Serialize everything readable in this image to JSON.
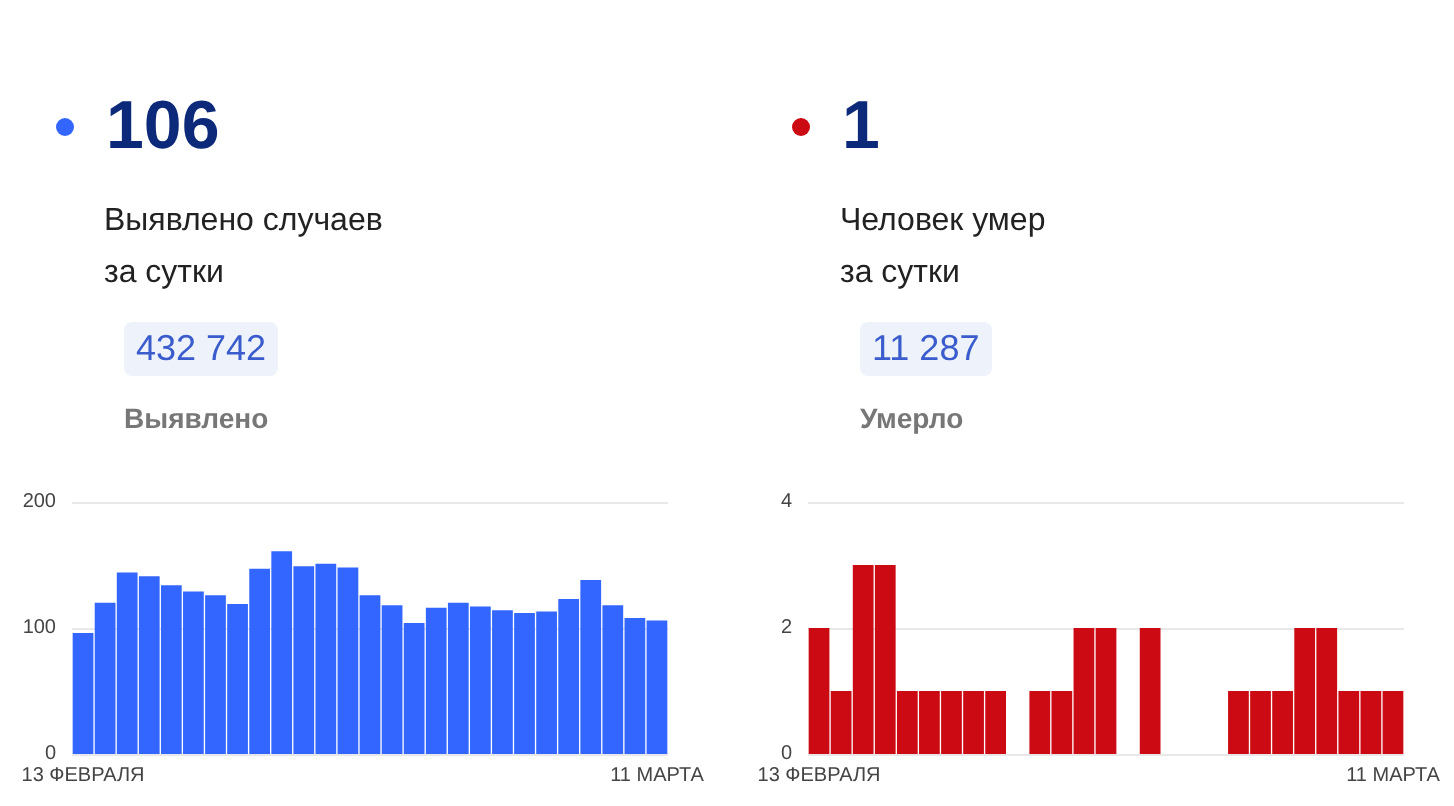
{
  "chart_data": [
    {
      "type": "bar",
      "title": "106",
      "subtitle": "Выявлено случаев\nза сутки",
      "annotations": [
        "432 742",
        "Выявлено"
      ],
      "categories": [
        "13 ФЕВРАЛЯ",
        null,
        null,
        null,
        null,
        null,
        null,
        null,
        null,
        null,
        null,
        null,
        null,
        null,
        null,
        null,
        null,
        null,
        null,
        null,
        null,
        null,
        null,
        null,
        null,
        null,
        "11 МАРТА"
      ],
      "series": [
        {
          "color": "#3366ff",
          "values": [
            96,
            120,
            144,
            141,
            134,
            129,
            126,
            119,
            147,
            161,
            149,
            151,
            148,
            126,
            118,
            104,
            116,
            120,
            117,
            114,
            112,
            113,
            123,
            138,
            118,
            108,
            106
          ]
        }
      ],
      "ylim": [
        0,
        200
      ],
      "yticks": [
        0,
        100,
        200
      ],
      "grid": "y"
    },
    {
      "type": "bar",
      "title": "1",
      "subtitle": "Человек умер\nза сутки",
      "annotations": [
        "11 287",
        "Умерло"
      ],
      "categories": [
        "13 ФЕВРАЛЯ",
        null,
        null,
        null,
        null,
        null,
        null,
        null,
        null,
        null,
        null,
        null,
        null,
        null,
        null,
        null,
        null,
        null,
        null,
        null,
        null,
        null,
        null,
        null,
        null,
        null,
        "11 МАРТА"
      ],
      "series": [
        {
          "color": "#cc0a14",
          "values": [
            2,
            1,
            3,
            3,
            1,
            1,
            1,
            1,
            1,
            0,
            1,
            1,
            2,
            2,
            0,
            2,
            0,
            0,
            0,
            1,
            1,
            1,
            2,
            2,
            1,
            1,
            1
          ]
        }
      ],
      "ylim": [
        0,
        4
      ],
      "yticks": [
        0,
        2,
        4
      ],
      "grid": "y"
    }
  ]
}
